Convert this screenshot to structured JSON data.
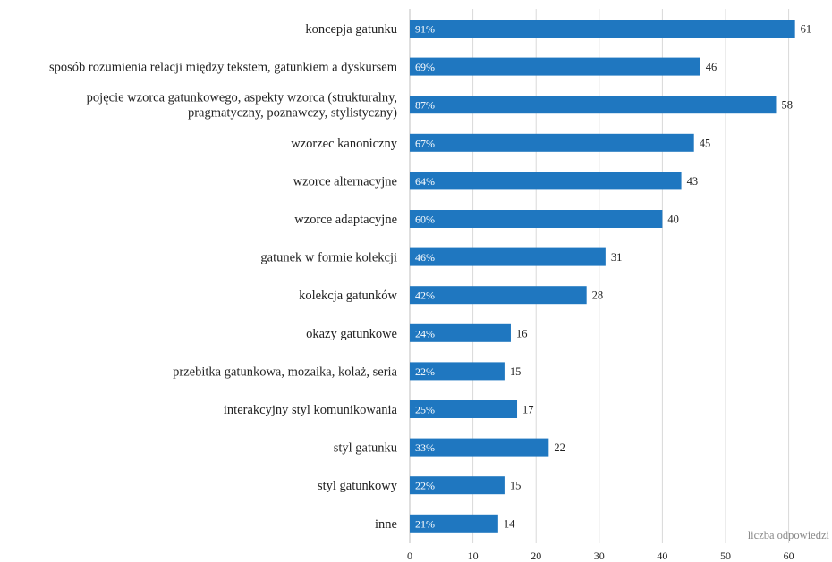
{
  "chart_data": {
    "type": "bar",
    "orientation": "horizontal",
    "categories": [
      "koncepja gatunku",
      "sposób rozumienia relacji między tekstem, gatunkiem a dyskursem",
      [
        "pojęcie wzorca gatunkowego, aspekty wzorca (strukturalny,",
        "pragmatyczny, poznawczy, stylistyczny)"
      ],
      "wzorzec kanoniczny",
      "wzorce alternacyjne",
      "wzorce adaptacyjne",
      "gatunek w formie kolekcji",
      "kolekcja gatunków",
      "okazy gatunkowe",
      "przebitka gatunkowa, mozaika, kolaż, seria",
      "interakcyjny styl komunikowania",
      "styl gatunku",
      "styl gatunkowy",
      "inne"
    ],
    "values": [
      61,
      46,
      58,
      45,
      43,
      40,
      31,
      28,
      16,
      15,
      17,
      22,
      15,
      14
    ],
    "value_labels": [
      "61",
      "46",
      "58",
      "45",
      "43",
      "40",
      "31",
      "28",
      "16",
      "15",
      "17",
      "22",
      "15",
      "14"
    ],
    "percent_labels": [
      "91%",
      "69%",
      "87%",
      "67%",
      "64%",
      "60%",
      "46%",
      "42%",
      "24%",
      "22%",
      "25%",
      "33%",
      "22%",
      "21%"
    ],
    "xlim": [
      0,
      60
    ],
    "x_ticks": [
      0,
      10,
      20,
      30,
      40,
      50,
      60
    ],
    "xlabel": "liczba odpowiedzi",
    "grid": true,
    "bar_color": "#1f77c0"
  }
}
